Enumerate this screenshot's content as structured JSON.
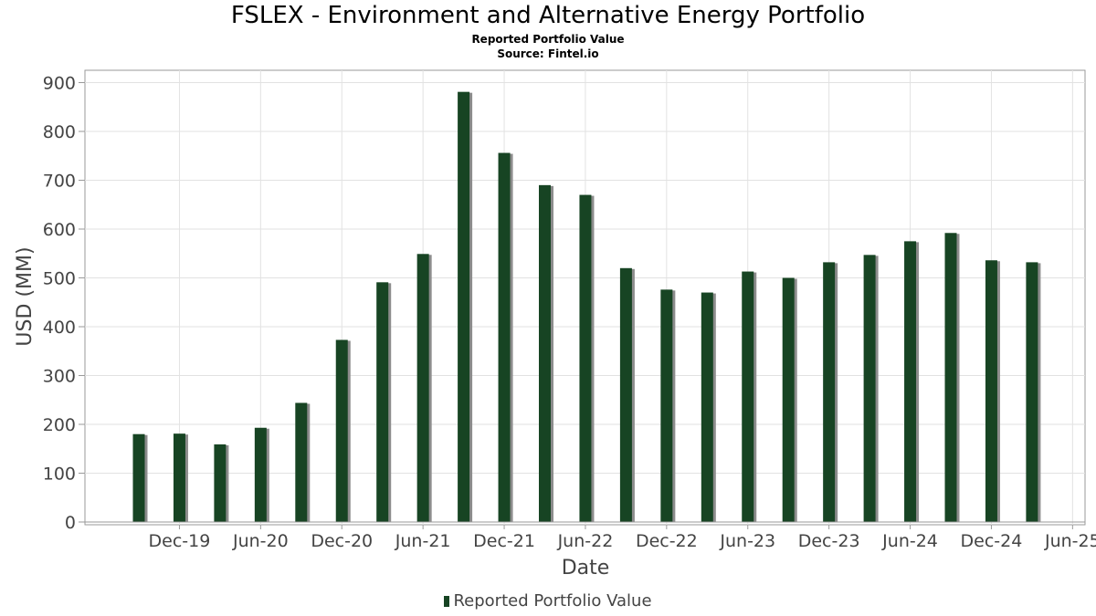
{
  "chart_data": {
    "type": "bar",
    "title": "FSLEX - Environment and Alternative Energy Portfolio",
    "subtitle": "Reported Portfolio Value",
    "source": "Source: Fintel.io",
    "xlabel": "Date",
    "ylabel": "USD (MM)",
    "ylim": [
      0,
      925
    ],
    "yticks": [
      0,
      100,
      200,
      300,
      400,
      500,
      600,
      700,
      800,
      900
    ],
    "xtick_labels": [
      "Dec-19",
      "Jun-20",
      "Dec-20",
      "Jun-21",
      "Dec-21",
      "Jun-22",
      "Dec-22",
      "Jun-23",
      "Dec-23",
      "Jun-24",
      "Dec-24",
      "Jun-25"
    ],
    "x": [
      "2019-09",
      "2019-12",
      "2020-03",
      "2020-06",
      "2020-09",
      "2020-12",
      "2021-03",
      "2021-06",
      "2021-09",
      "2021-12",
      "2022-03",
      "2022-06",
      "2022-09",
      "2022-12",
      "2023-03",
      "2023-06",
      "2023-09",
      "2023-12",
      "2024-03",
      "2024-06",
      "2024-09",
      "2024-12",
      "2025-03",
      "2025-06"
    ],
    "series": [
      {
        "name": "Reported Portfolio Value",
        "color": "#174423",
        "values": [
          180,
          181,
          159,
          193,
          244,
          373,
          491,
          549,
          881,
          756,
          690,
          670,
          520,
          476,
          470,
          513,
          500,
          532,
          547,
          575,
          592,
          536,
          532,
          0
        ]
      }
    ],
    "grid": true,
    "legend_position": "bottom"
  }
}
